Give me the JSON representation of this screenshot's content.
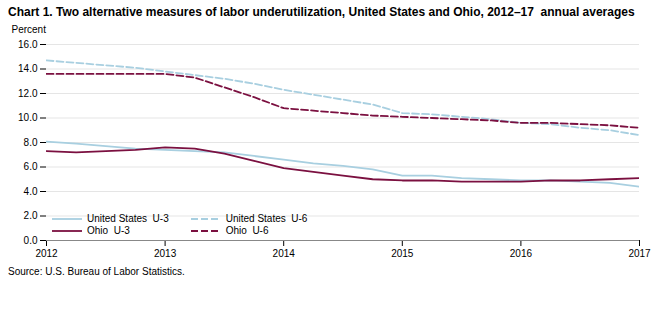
{
  "chart_data": {
    "type": "line",
    "title": "Chart 1. Two alternative measures of labor underutilization, United States and Ohio, 2012–17  annual averages",
    "source": "Source: U.S. Bureau of Labor Statistics.",
    "y_label": "Percent",
    "x": [
      2012,
      2012.25,
      2012.5,
      2012.75,
      2013,
      2013.25,
      2013.5,
      2013.75,
      2014,
      2014.25,
      2014.5,
      2014.75,
      2015,
      2015.25,
      2015.5,
      2015.75,
      2016,
      2016.25,
      2016.5,
      2016.75,
      2017
    ],
    "series": [
      {
        "name": "United States  U-3",
        "color": "#a8cfe0",
        "line_style": "solid",
        "values": [
          8.07,
          7.9,
          7.7,
          7.5,
          7.4,
          7.3,
          7.2,
          6.9,
          6.6,
          6.3,
          6.1,
          5.8,
          5.3,
          5.3,
          5.1,
          5.0,
          4.9,
          4.9,
          4.8,
          4.7,
          4.4
        ]
      },
      {
        "name": "United States  U-6",
        "color": "#a8cfe0",
        "line_style": "dashed",
        "values": [
          14.7,
          14.5,
          14.3,
          14.1,
          13.8,
          13.5,
          13.2,
          12.8,
          12.3,
          11.9,
          11.5,
          11.1,
          10.4,
          10.3,
          10.1,
          9.9,
          9.6,
          9.5,
          9.2,
          9.0,
          8.6
        ]
      },
      {
        "name": "Ohio  U-3",
        "color": "#7b1040",
        "line_style": "solid",
        "values": [
          7.3,
          7.2,
          7.3,
          7.4,
          7.6,
          7.5,
          7.1,
          6.5,
          5.9,
          5.6,
          5.3,
          5.0,
          4.9,
          4.9,
          4.8,
          4.8,
          4.8,
          4.9,
          4.9,
          5.0,
          5.1
        ]
      },
      {
        "name": "Ohio  U-6",
        "color": "#7b1040",
        "line_style": "dashed",
        "values": [
          13.6,
          13.6,
          13.6,
          13.6,
          13.6,
          13.3,
          12.5,
          11.7,
          10.8,
          10.6,
          10.4,
          10.2,
          10.1,
          10.0,
          9.9,
          9.8,
          9.6,
          9.6,
          9.5,
          9.4,
          9.2
        ]
      }
    ],
    "xlim": [
      2012,
      2017
    ],
    "xticks": [
      2012,
      2013,
      2014,
      2015,
      2016,
      2017
    ],
    "ylim": [
      0,
      16
    ],
    "yticks": [
      {
        "value": 0,
        "label": "0.0"
      },
      {
        "value": 2,
        "label": "2.0"
      },
      {
        "value": 4,
        "label": "4.0"
      },
      {
        "value": 6,
        "label": "6.0"
      },
      {
        "value": 8,
        "label": "8.0"
      },
      {
        "value": 10,
        "label": "10.0"
      },
      {
        "value": 12,
        "label": "12.0"
      },
      {
        "value": 14,
        "label": "14.0"
      },
      {
        "value": 16,
        "label": "16.0"
      }
    ],
    "grid": true,
    "legend": "lower left"
  }
}
